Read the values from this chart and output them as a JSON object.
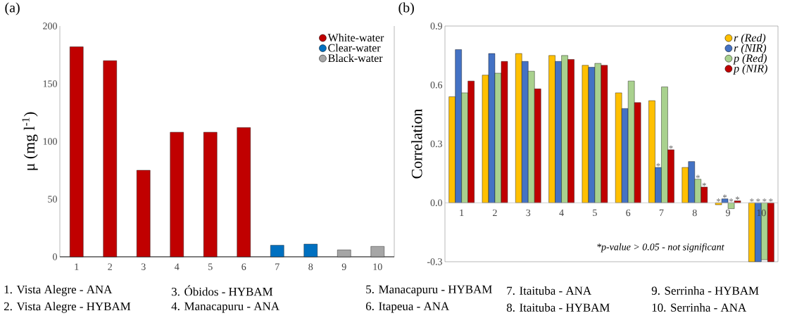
{
  "chart_data": [
    {
      "type": "bar",
      "title": "(a)",
      "ylabel": "μ (mg l$^{-1}$)",
      "categories": [
        "1",
        "2",
        "3",
        "4",
        "5",
        "6",
        "7",
        "8",
        "9",
        "10"
      ],
      "stacked": true,
      "series": [
        {
          "name": "White-water",
          "color": "#c00000",
          "values": [
            182,
            170,
            75,
            108,
            108,
            112,
            null,
            null,
            null,
            null
          ]
        },
        {
          "name": "Clear-water",
          "color": "#0070c0",
          "values": [
            null,
            null,
            null,
            null,
            null,
            null,
            10,
            11,
            null,
            null
          ]
        },
        {
          "name": "Black-water",
          "color": "#a6a6a6",
          "values": [
            null,
            null,
            null,
            null,
            null,
            null,
            null,
            null,
            6,
            9
          ]
        }
      ],
      "ylim": [
        0,
        200
      ],
      "yticks": [
        0,
        50,
        100,
        150,
        200
      ],
      "legend": "top right",
      "annotations": [
        "1. Vista Alegre - ANA",
        "2. Vista Alegre - HYBAM",
        "3. Óbidos - HYBAM",
        "4. Manacapuru - ANA",
        "5. Manacapuru - HYBAM",
        "6. Itapeua - ANA",
        "7. Itaituba - ANA",
        "8. Itaituba - HYBAM",
        "9. Serrinha - HYBAM",
        "10. Serrinha - ANA"
      ]
    },
    {
      "type": "bar",
      "title": "(b)",
      "ylabel": "Correlation",
      "categories": [
        "1",
        "2",
        "3",
        "4",
        "5",
        "6",
        "7",
        "8",
        "9",
        "10"
      ],
      "series": [
        {
          "name": "r (Red)",
          "color": "#ffc000",
          "values": [
            0.54,
            0.65,
            0.76,
            0.75,
            0.7,
            0.56,
            0.52,
            0.18,
            -0.01,
            -0.3
          ]
        },
        {
          "name": "r (NIR)",
          "color": "#4472c4",
          "values": [
            0.78,
            0.76,
            0.72,
            0.72,
            0.69,
            0.48,
            0.18,
            0.21,
            0.02,
            -0.3
          ]
        },
        {
          "name": "p (Red)",
          "color": "#a9d18e",
          "values": [
            0.56,
            0.66,
            0.67,
            0.75,
            0.71,
            0.62,
            0.59,
            0.12,
            -0.03,
            -0.29
          ]
        },
        {
          "name": "p (NIR)",
          "color": "#c00000",
          "values": [
            0.62,
            0.72,
            0.58,
            0.73,
            0.7,
            0.51,
            0.27,
            0.08,
            0.01,
            -0.3
          ]
        }
      ],
      "ylim": [
        -0.3,
        0.9
      ],
      "yticks": [
        -0.3,
        {
          "value": 0,
          "label": "0.0"
        },
        0.3,
        0.6,
        0.9
      ],
      "legend": "top right",
      "annotations": [
        {
          "text": "*",
          "x": "7",
          "y": 0.18
        },
        {
          "text": "*",
          "x": "7",
          "y": 0.27
        },
        {
          "text": "*",
          "x": "8",
          "y": 0.12
        },
        {
          "text": "*",
          "x": "8",
          "y": 0.08
        },
        {
          "text": "*",
          "x": "9",
          "y": -0.01
        },
        {
          "text": "*",
          "x": "9",
          "y": 0.02
        },
        {
          "text": "*",
          "x": "9",
          "y": -0.03
        },
        {
          "text": "*",
          "x": "9",
          "y": 0.01
        },
        {
          "text": "*",
          "x": "10",
          "y": 0
        },
        {
          "text": "*",
          "x": "10",
          "y": 0
        },
        {
          "text": "*",
          "x": "10",
          "y": 0
        },
        {
          "text": "*",
          "x": "10",
          "y": 0
        },
        "*p-value > 0.05 - not significant"
      ]
    }
  ]
}
